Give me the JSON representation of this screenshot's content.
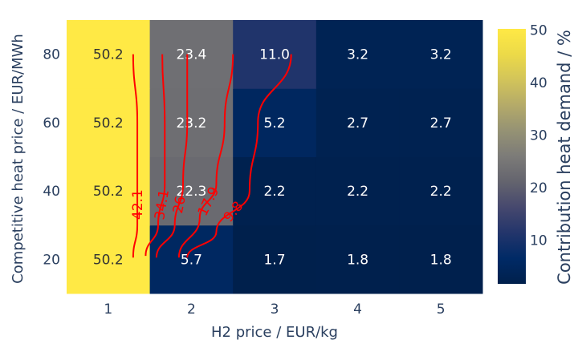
{
  "chart_data": {
    "type": "heatmap",
    "x_title": "H2 price / EUR/kg",
    "y_title": "Competitive heat price / EUR/MWh",
    "colorbar_title": "Contribution heat demand / %",
    "x": [
      1,
      2,
      3,
      4,
      5
    ],
    "y": [
      20,
      40,
      60,
      80
    ],
    "z": [
      [
        50.2,
        5.7,
        1.7,
        1.8,
        1.8
      ],
      [
        50.2,
        22.3,
        2.2,
        2.2,
        2.2
      ],
      [
        50.2,
        23.2,
        5.2,
        2.7,
        2.7
      ],
      [
        50.2,
        23.4,
        11.0,
        3.2,
        3.2
      ]
    ],
    "cell_text": [
      [
        "50.2",
        "5.7",
        "1.7",
        "1.8",
        "1.8"
      ],
      [
        "50.2",
        "22.3",
        "2.2",
        "2.2",
        "2.2"
      ],
      [
        "50.2",
        "23.2",
        "5.2",
        "2.7",
        "2.7"
      ],
      [
        "50.2",
        "23.4",
        "11.0",
        "3.2",
        "3.2"
      ]
    ],
    "colorscale": "cividis",
    "zrange": [
      1.7,
      50.2
    ],
    "colorbar_ticks": [
      10,
      20,
      30,
      40,
      50
    ],
    "contour_color": "#ff0000",
    "contours": [
      {
        "label": "42.1",
        "points": [
          [
            1.3,
            20.5
          ],
          [
            1.35,
            30
          ],
          [
            1.35,
            42
          ],
          [
            1.35,
            60
          ],
          [
            1.3,
            80
          ]
        ]
      },
      {
        "label": "34.1",
        "points": [
          [
            1.45,
            21
          ],
          [
            1.6,
            30
          ],
          [
            1.68,
            42
          ],
          [
            1.68,
            60
          ],
          [
            1.65,
            80
          ]
        ]
      },
      {
        "label": "26",
        "points": [
          [
            1.58,
            20.5
          ],
          [
            1.8,
            30
          ],
          [
            1.9,
            42
          ],
          [
            1.95,
            60
          ],
          [
            1.95,
            80
          ]
        ]
      },
      {
        "label": "17.9",
        "points": [
          [
            1.85,
            20.5
          ],
          [
            2.1,
            32
          ],
          [
            2.3,
            42
          ],
          [
            2.4,
            60
          ],
          [
            2.5,
            80
          ]
        ]
      },
      {
        "label": "9.8",
        "points": [
          [
            1.95,
            20.5
          ],
          [
            2.3,
            28
          ],
          [
            2.7,
            40
          ],
          [
            2.8,
            60
          ],
          [
            3.2,
            80
          ]
        ]
      }
    ]
  }
}
